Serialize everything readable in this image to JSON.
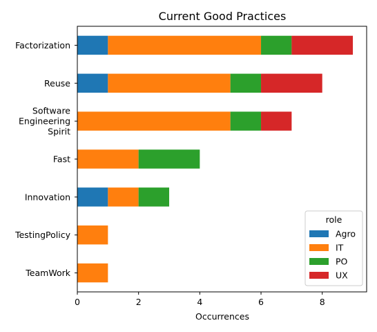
{
  "chart_data": {
    "type": "bar",
    "orientation": "horizontal",
    "stacked": true,
    "title": "Current Good Practices",
    "xlabel": "Occurrences",
    "ylabel": "",
    "xlim": [
      0,
      9.45
    ],
    "xticks": [
      0,
      2,
      4,
      6,
      8
    ],
    "grid": false,
    "legend": {
      "title": "role",
      "placement": "lower-right"
    },
    "categories": [
      [
        "Factorization"
      ],
      [
        "Reuse"
      ],
      [
        "Software",
        "Engineering",
        "Spirit"
      ],
      [
        "Fast"
      ],
      [
        "Innovation"
      ],
      [
        "TestingPolicy"
      ],
      [
        "TeamWork"
      ]
    ],
    "series": [
      {
        "name": "Agro",
        "color": "#1f77b4",
        "values": [
          1,
          1,
          0,
          0,
          1,
          0,
          0
        ]
      },
      {
        "name": "IT",
        "color": "#ff7f0e",
        "values": [
          5,
          4,
          5,
          2,
          1,
          1,
          1
        ]
      },
      {
        "name": "PO",
        "color": "#2ca02c",
        "values": [
          1,
          1,
          1,
          2,
          1,
          0,
          0
        ]
      },
      {
        "name": "UX",
        "color": "#d62728",
        "values": [
          2,
          2,
          1,
          0,
          0,
          0,
          0
        ]
      }
    ]
  }
}
